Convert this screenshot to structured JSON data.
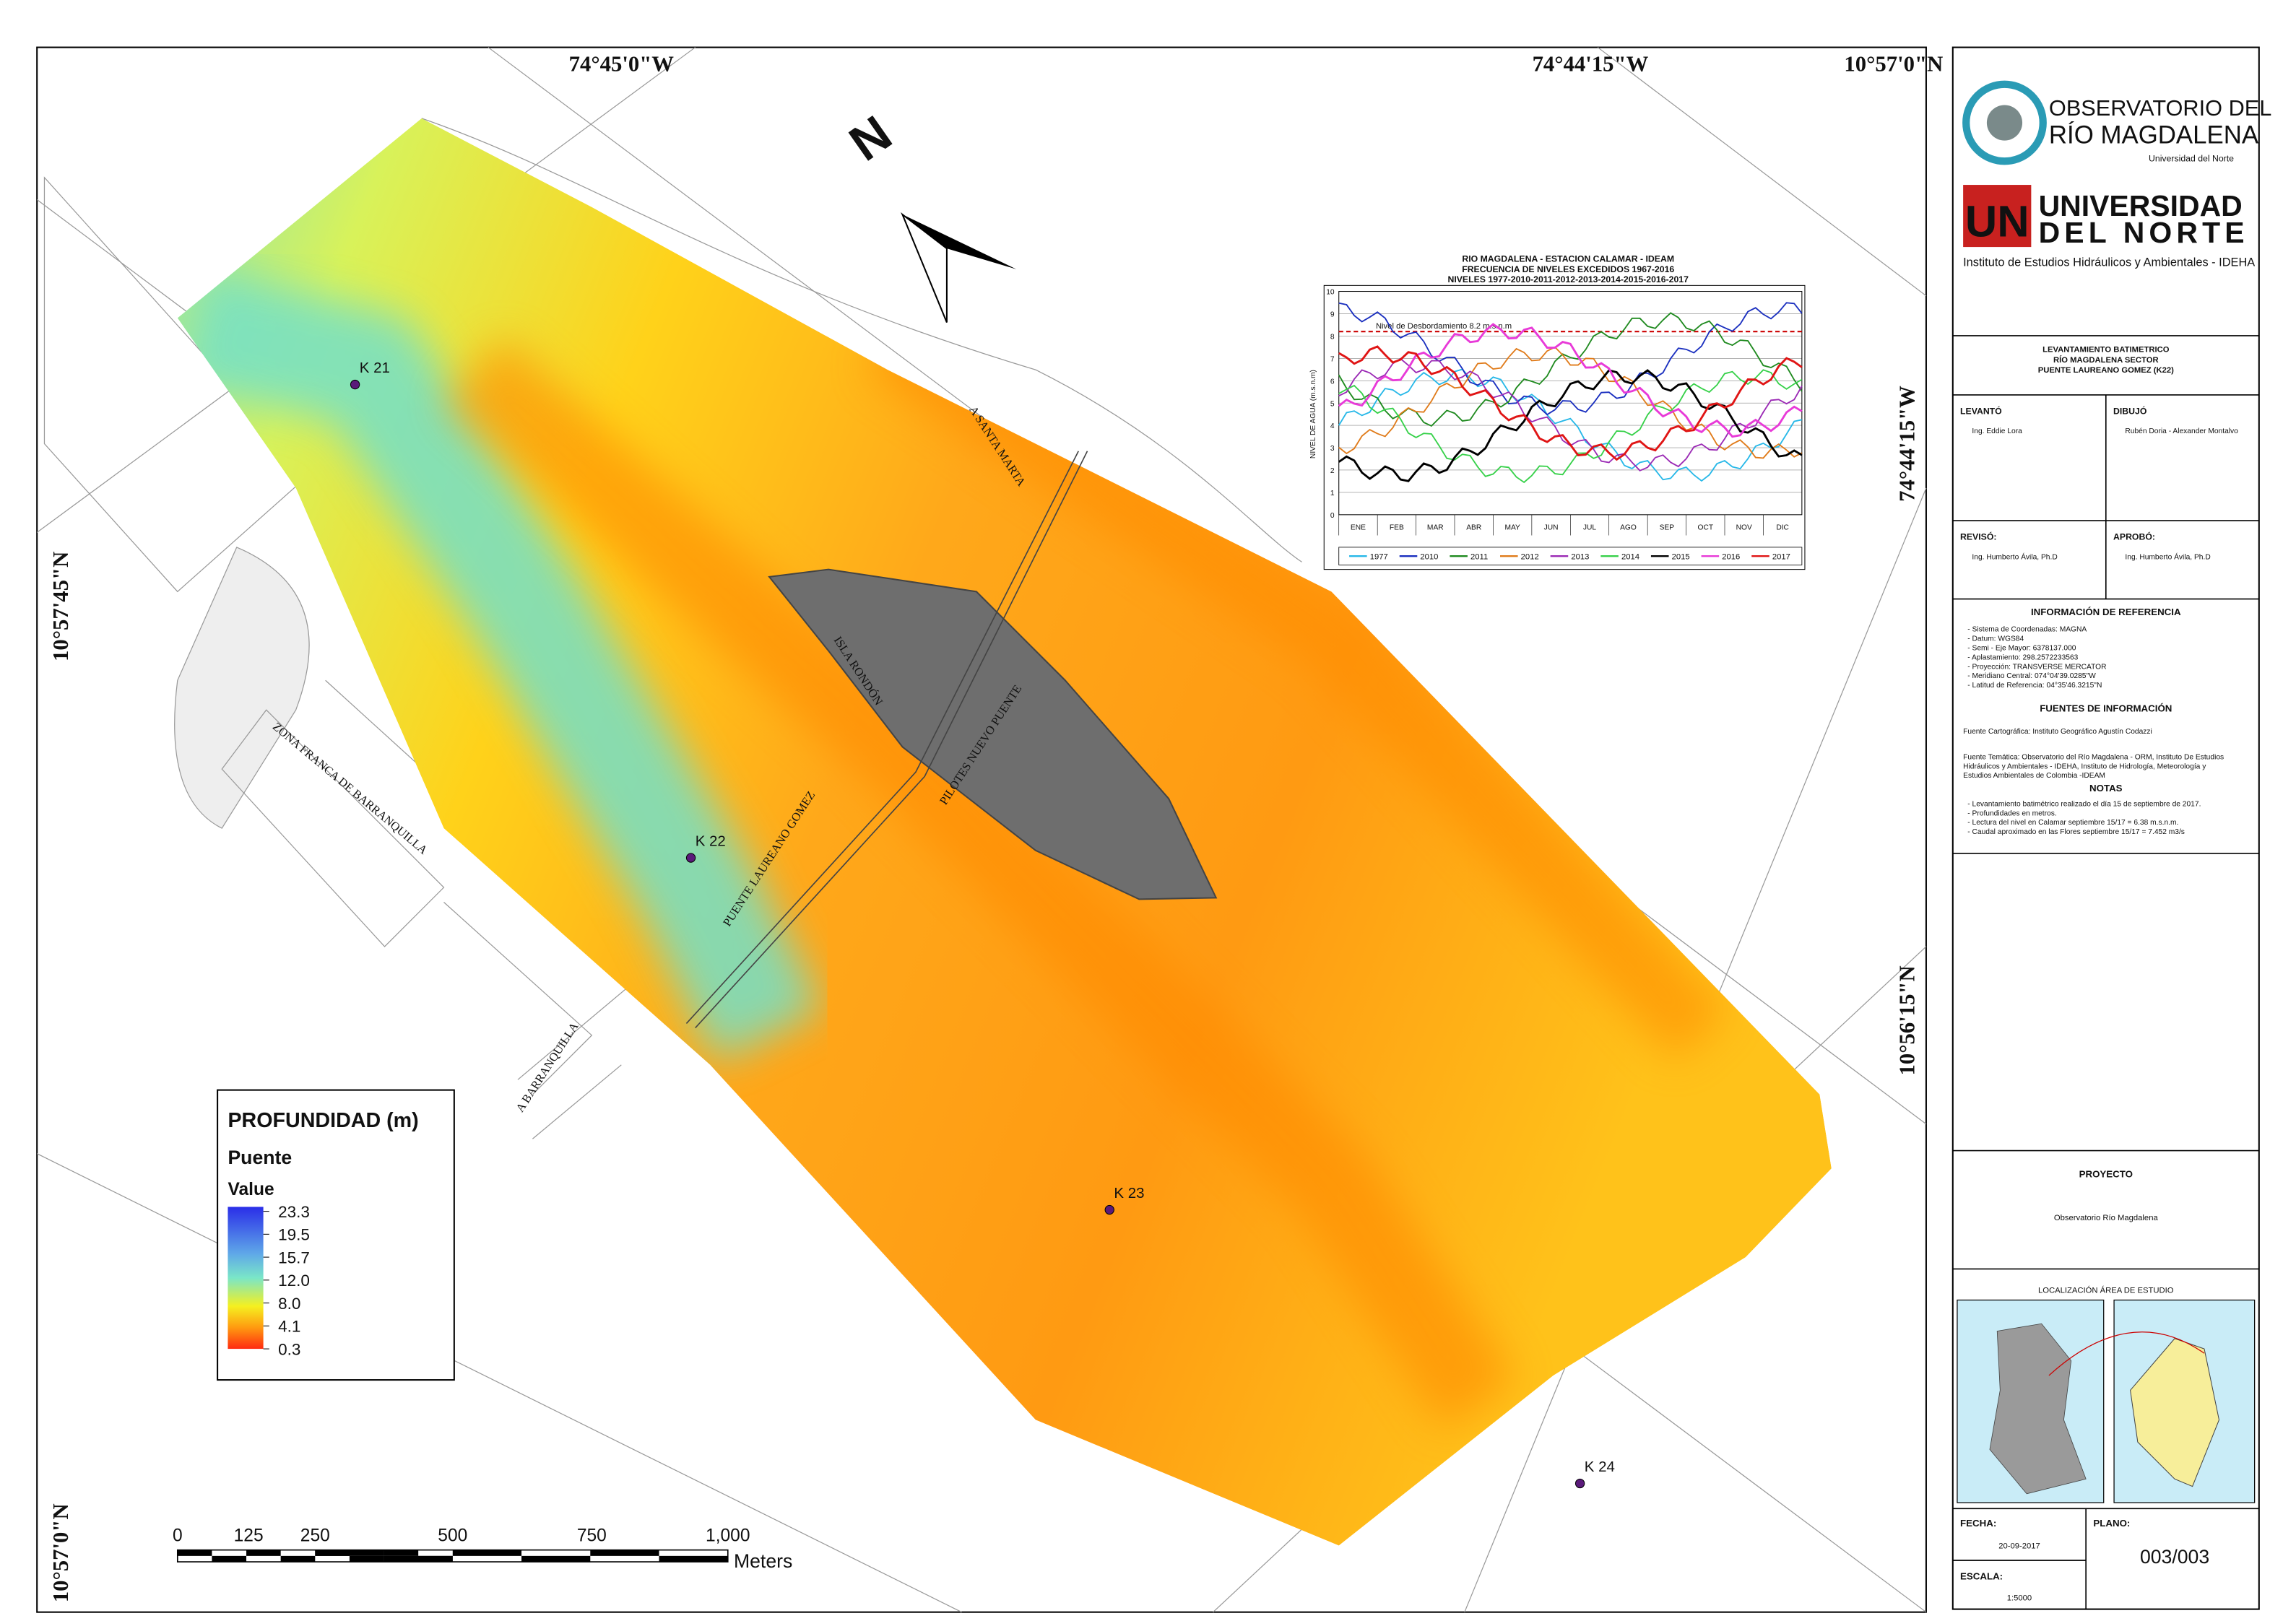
{
  "map": {
    "coordinates": {
      "top": [
        "74°45'0\"W",
        "74°44'15\"W",
        "10°57'0\"N"
      ],
      "left": [
        "10°57'45\"N",
        "10°57'0\"N"
      ],
      "right": [
        "74°44'15\"W",
        "10°56'15\"N"
      ]
    },
    "place_labels": [
      "ZONA FRANCA DE BARRANQUILLA",
      "PUENTE LAUREANO GOMEZ",
      "PILOTES NUEVO PUENTE",
      "ISLA RONDÓN",
      "A SANTA MARTA",
      "A BARRANQUILLA"
    ],
    "points": [
      "K 21",
      "K 22",
      "K 23",
      "K 24"
    ],
    "legend": {
      "title": "PROFUNDIDAD (m)",
      "layer": "Puente",
      "field": "Value",
      "labels": [
        "23.3",
        "19.5",
        "15.7",
        "12.0",
        "8.0",
        "4.1",
        "0.3"
      ]
    },
    "scale_bar": {
      "labels": [
        "0",
        "125",
        "250",
        "500",
        "750",
        "1,000"
      ],
      "unit": "Meters"
    }
  },
  "inset_chart": {
    "title": [
      "RIO MAGDALENA - ESTACION CALAMAR - IDEAM",
      "FRECUENCIA DE NIVELES EXCEDIDOS 1967-2016",
      "NIVELES 1977-2010-2011-2012-2013-2014-2015-2016-2017"
    ],
    "y_axis_label": "NIVEL DE AGUA (m.s.n.m)",
    "annotation": "Nivel de Desbordamiento 8.2 m.s.n.m",
    "flood_level": 8.2,
    "ylim": [
      0,
      10
    ],
    "yticks": [
      0,
      1,
      2,
      3,
      4,
      5,
      6,
      7,
      8,
      9,
      10
    ],
    "months": [
      "ENE",
      "FEB",
      "MAR",
      "ABR",
      "MAY",
      "JUN",
      "JUL",
      "AGO",
      "SEP",
      "OCT",
      "NOV",
      "DIC"
    ],
    "legend": [
      {
        "name": "1977",
        "color": "#27b8e8"
      },
      {
        "name": "2010",
        "color": "#1a2fbf"
      },
      {
        "name": "2011",
        "color": "#1f8a1f"
      },
      {
        "name": "2012",
        "color": "#e07b1a"
      },
      {
        "name": "2013",
        "color": "#9b2ab5"
      },
      {
        "name": "2014",
        "color": "#37d14a"
      },
      {
        "name": "2015",
        "color": "#000000"
      },
      {
        "name": "2016",
        "color": "#e83ad8"
      },
      {
        "name": "2017",
        "color": "#e01515"
      }
    ]
  },
  "panel": {
    "logo1": [
      "OBSERVATORIO DEL",
      "RÍO MAGDALENA",
      "Universidad del Norte"
    ],
    "logo2": [
      "UN",
      "UNIVERSIDAD",
      "DEL NORTE",
      "Instituto de Estudios Hidráulicos y Ambientales - IDEHA"
    ],
    "title": [
      "LEVANTAMIENTO BATIMETRICO",
      "RÍO MAGDALENA SECTOR",
      "PUENTE LAUREANO GOMEZ (K22)"
    ],
    "levanto": {
      "label": "LEVANTÓ",
      "value": "Ing. Eddie Lora"
    },
    "dibujo": {
      "label": "DIBUJÓ",
      "value": "Rubén Doria - Alexander Montalvo"
    },
    "reviso": {
      "label": "REVISÓ:",
      "value": "Ing. Humberto Ávila, Ph.D"
    },
    "aprobo": {
      "label": "APROBÓ:",
      "value": "Ing. Humberto Ávila, Ph.D"
    },
    "info_title": "INFORMACIÓN DE REFERENCIA",
    "info": [
      "- Sistema de Coordenadas: MAGNA",
      "- Datum: WGS84",
      "- Semi - Eje Mayor: 6378137.000",
      "- Aplastamiento: 298.2572233563",
      "- Proyección: TRANSVERSE MERCATOR",
      "- Meridiano Central: 074°04'39.0285\"W",
      "- Latitud de Referencia: 04°35'46.3215\"N"
    ],
    "sources_title": "FUENTES DE INFORMACIÓN",
    "sources": [
      "Fuente Cartográfica: Instituto Geográfico Agustín Codazzi",
      "Fuente Temática: Observatorio del Río Magdalena - ORM, Instituto De Estudios",
      "Hidráulicos y Ambientales - IDEHA, Instituto de Hidrología, Meteorología y",
      "Estudios Ambientales de Colombia -IDEAM"
    ],
    "notes_title": "NOTAS",
    "notes": [
      "- Levantamiento batimétrico realizado el día 15 de septiembre de 2017.",
      "- Profundidades en metros.",
      "- Lectura del nivel en Calamar septiembre 15/17 = 6.38 m.s.n.m.",
      "- Caudal aproximado en las Flores septiembre 15/17 = 7.452 m3/s"
    ],
    "project": {
      "label": "PROYECTO",
      "value": "Observatorio Río Magdalena"
    },
    "location_title": "LOCALIZACIÓN ÁREA DE ESTUDIO",
    "fecha": {
      "label": "FECHA:",
      "value": "20-09-2017"
    },
    "escala": {
      "label": "ESCALA:",
      "value": "1:5000"
    },
    "plano": {
      "label": "PLANO:",
      "value": "003/003"
    }
  }
}
